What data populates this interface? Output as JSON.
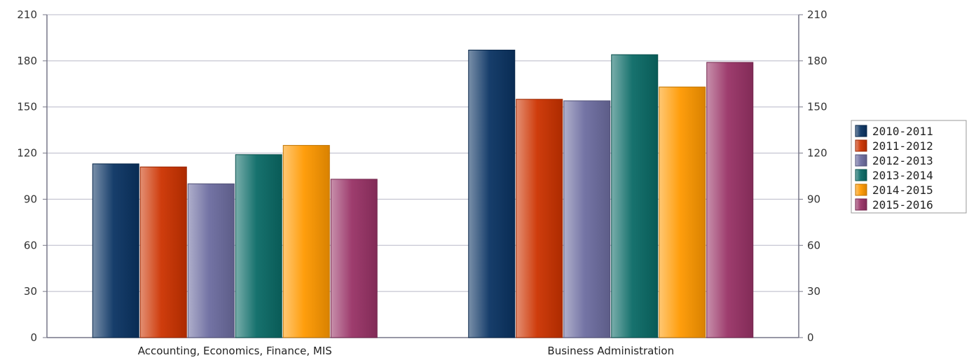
{
  "chart_data": {
    "type": "bar",
    "title": "",
    "xlabel": "",
    "ylabel": "",
    "categories": [
      "Accounting, Economics, Finance, MIS",
      "Business Administration"
    ],
    "series": [
      {
        "name": "2010-2011",
        "values": [
          113,
          187
        ]
      },
      {
        "name": "2011-2012",
        "values": [
          111,
          155
        ]
      },
      {
        "name": "2012-2013",
        "values": [
          100,
          154
        ]
      },
      {
        "name": "2013-2014",
        "values": [
          119,
          184
        ]
      },
      {
        "name": "2014-2015",
        "values": [
          125,
          163
        ]
      },
      {
        "name": "2015-2016",
        "values": [
          103,
          179
        ]
      }
    ],
    "ylim": [
      0,
      210
    ],
    "yticks": [
      0,
      30,
      60,
      90,
      120,
      150,
      180,
      210
    ],
    "y_axis_both_sides": true,
    "grid": true,
    "legend": "right",
    "colors": [
      "#0b3463",
      "#cc3300",
      "#6d6da0",
      "#0b6b66",
      "#ff9900",
      "#993366"
    ]
  }
}
